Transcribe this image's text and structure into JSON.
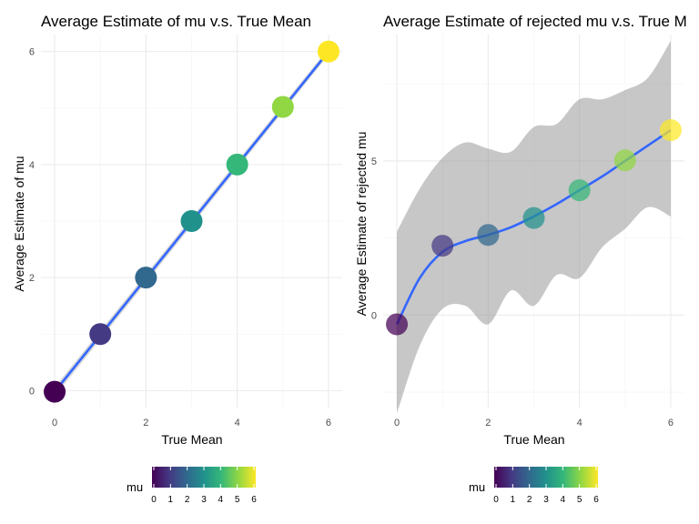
{
  "chart_data": [
    {
      "type": "scatter",
      "title": "Average Estimate of mu v.s. True Mean",
      "xlabel": "True Mean",
      "ylabel": "Average Estimate of mu",
      "xlim": [
        -0.3,
        6.3
      ],
      "ylim": [
        -0.3,
        6.3
      ],
      "x_ticks": [
        0,
        2,
        4,
        6
      ],
      "y_ticks": [
        0,
        2,
        4,
        6
      ],
      "x_tick_labels": [
        "0",
        "2",
        "4",
        "6"
      ],
      "y_tick_labels": [
        "0",
        "2",
        "4",
        "6"
      ],
      "points": [
        {
          "x": 0,
          "y": -0.02
        },
        {
          "x": 1,
          "y": 1.0
        },
        {
          "x": 2,
          "y": 2.0
        },
        {
          "x": 3,
          "y": 3.0
        },
        {
          "x": 4,
          "y": 4.0
        },
        {
          "x": 5,
          "y": 5.02
        },
        {
          "x": 6,
          "y": 6.0
        }
      ],
      "smooth_line": {
        "x": [
          0,
          6
        ],
        "y": [
          -0.02,
          6.0
        ],
        "band_upper": [
          0.06,
          6.06
        ],
        "band_lower": [
          -0.1,
          5.94
        ]
      },
      "legend": {
        "title": "mu",
        "position": "bottom",
        "ticks": [
          "0",
          "1",
          "2",
          "3",
          "4",
          "5",
          "6"
        ]
      },
      "grid": true
    },
    {
      "type": "scatter",
      "title": "Average Estimate of rejected mu v.s. True M",
      "xlabel": "True Mean",
      "ylabel": "Average Estimate of rejected mu",
      "xlim": [
        -0.3,
        6.3
      ],
      "ylim": [
        -3.0,
        9.1
      ],
      "x_ticks": [
        0,
        2,
        4,
        6
      ],
      "y_ticks": [
        0,
        5
      ],
      "x_tick_labels": [
        "0",
        "2",
        "4",
        "6"
      ],
      "y_tick_labels": [
        "0",
        "5"
      ],
      "points": [
        {
          "x": 0,
          "y": -0.3
        },
        {
          "x": 1,
          "y": 2.25
        },
        {
          "x": 2,
          "y": 2.6
        },
        {
          "x": 3,
          "y": 3.15
        },
        {
          "x": 4,
          "y": 4.05
        },
        {
          "x": 5,
          "y": 5.02
        },
        {
          "x": 6,
          "y": 6.0
        }
      ],
      "smooth_line": {
        "x": [
          0,
          0.5,
          1,
          1.5,
          2,
          2.5,
          3,
          3.5,
          4,
          4.5,
          5,
          5.5,
          6
        ],
        "y": [
          -0.3,
          1.2,
          2.05,
          2.4,
          2.6,
          2.85,
          3.2,
          3.6,
          4.05,
          4.5,
          5.0,
          5.5,
          6.0
        ],
        "band_upper": [
          2.7,
          4.1,
          5.1,
          5.6,
          5.4,
          5.3,
          6.1,
          6.2,
          7.0,
          7.0,
          7.3,
          7.7,
          8.9
        ],
        "band_lower": [
          -3.2,
          -1.0,
          0.2,
          0.3,
          -0.3,
          0.8,
          0.3,
          1.3,
          1.2,
          2.2,
          2.8,
          3.5,
          3.2
        ]
      },
      "legend": {
        "title": "mu",
        "position": "bottom",
        "ticks": [
          "0",
          "1",
          "2",
          "3",
          "4",
          "5",
          "6"
        ]
      },
      "grid": true
    }
  ],
  "colors": {
    "smooth_line": "#3366ff",
    "band": "#999999",
    "palette": [
      "#440154",
      "#443983",
      "#31688e",
      "#21918c",
      "#35b779",
      "#90d743",
      "#fde725"
    ]
  }
}
